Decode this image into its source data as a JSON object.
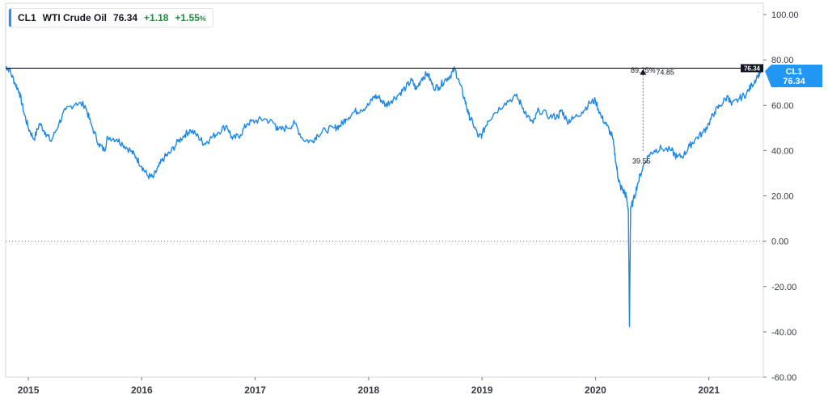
{
  "legend": {
    "symbol": "CL1",
    "name": "WTI Crude Oil",
    "price": "76.34",
    "change": "+1.18",
    "change_pct": "+1.55",
    "pct_sign": "%"
  },
  "price_badge": {
    "symbol": "CL1",
    "price": "76.34"
  },
  "reference_line_tag": "76.34",
  "measure": {
    "pct_label": "89.25%",
    "upper_label": "74.85",
    "lower_label": "39.55"
  },
  "colors": {
    "line": "#1e88e5",
    "badge": "#2196f3",
    "up": "#1e8e3e"
  },
  "chart_data": {
    "type": "line",
    "title": "",
    "xlabel": "",
    "ylabel": "",
    "ylim": [
      -60,
      105
    ],
    "y_ticks": [
      "100.00",
      "80.00",
      "60.00",
      "40.00",
      "20.00",
      "0.00",
      "-20.00",
      "-40.00",
      "-60.00"
    ],
    "x_ticks": [
      "2015",
      "2016",
      "2017",
      "2018",
      "2019",
      "2020",
      "2021"
    ],
    "reference_line": 76.34,
    "zero_line": 0,
    "series": [
      {
        "values": [
          [
            2014.8,
            77
          ],
          [
            2014.83,
            76
          ],
          [
            2014.88,
            70
          ],
          [
            2014.92,
            66
          ],
          [
            2014.96,
            57
          ],
          [
            2015.0,
            50
          ],
          [
            2015.05,
            45
          ],
          [
            2015.1,
            52
          ],
          [
            2015.15,
            48
          ],
          [
            2015.2,
            44
          ],
          [
            2015.27,
            52
          ],
          [
            2015.33,
            58
          ],
          [
            2015.42,
            61
          ],
          [
            2015.5,
            60
          ],
          [
            2015.55,
            52
          ],
          [
            2015.62,
            43
          ],
          [
            2015.67,
            40
          ],
          [
            2015.7,
            46
          ],
          [
            2015.78,
            45
          ],
          [
            2015.83,
            43
          ],
          [
            2015.9,
            40
          ],
          [
            2015.95,
            37
          ],
          [
            2016.0,
            33
          ],
          [
            2016.05,
            29
          ],
          [
            2016.1,
            28
          ],
          [
            2016.15,
            33
          ],
          [
            2016.2,
            37
          ],
          [
            2016.25,
            39
          ],
          [
            2016.32,
            44
          ],
          [
            2016.38,
            47
          ],
          [
            2016.43,
            49
          ],
          [
            2016.5,
            46
          ],
          [
            2016.55,
            43
          ],
          [
            2016.6,
            45
          ],
          [
            2016.67,
            48
          ],
          [
            2016.75,
            51
          ],
          [
            2016.8,
            45
          ],
          [
            2016.87,
            47
          ],
          [
            2016.93,
            52
          ],
          [
            2017.0,
            53
          ],
          [
            2017.08,
            54
          ],
          [
            2017.17,
            52
          ],
          [
            2017.2,
            49
          ],
          [
            2017.28,
            50
          ],
          [
            2017.35,
            52
          ],
          [
            2017.42,
            45
          ],
          [
            2017.5,
            44
          ],
          [
            2017.55,
            47
          ],
          [
            2017.62,
            49
          ],
          [
            2017.7,
            50
          ],
          [
            2017.75,
            51
          ],
          [
            2017.8,
            54
          ],
          [
            2017.87,
            57
          ],
          [
            2017.93,
            58
          ],
          [
            2018.0,
            60
          ],
          [
            2018.05,
            64
          ],
          [
            2018.1,
            63
          ],
          [
            2018.15,
            60
          ],
          [
            2018.2,
            62
          ],
          [
            2018.27,
            65
          ],
          [
            2018.33,
            68
          ],
          [
            2018.38,
            71
          ],
          [
            2018.42,
            67
          ],
          [
            2018.47,
            72
          ],
          [
            2018.52,
            74
          ],
          [
            2018.57,
            68
          ],
          [
            2018.62,
            68
          ],
          [
            2018.67,
            71
          ],
          [
            2018.72,
            73
          ],
          [
            2018.76,
            76
          ],
          [
            2018.8,
            70
          ],
          [
            2018.85,
            62
          ],
          [
            2018.88,
            56
          ],
          [
            2018.92,
            52
          ],
          [
            2018.97,
            46
          ],
          [
            2019.0,
            47
          ],
          [
            2019.05,
            53
          ],
          [
            2019.1,
            56
          ],
          [
            2019.2,
            61
          ],
          [
            2019.3,
            64
          ],
          [
            2019.35,
            60
          ],
          [
            2019.4,
            55
          ],
          [
            2019.45,
            52
          ],
          [
            2019.5,
            58
          ],
          [
            2019.6,
            55
          ],
          [
            2019.67,
            55
          ],
          [
            2019.7,
            58
          ],
          [
            2019.75,
            53
          ],
          [
            2019.8,
            54
          ],
          [
            2019.88,
            57
          ],
          [
            2019.95,
            61
          ],
          [
            2020.0,
            62
          ],
          [
            2020.05,
            55
          ],
          [
            2020.1,
            51
          ],
          [
            2020.15,
            46
          ],
          [
            2020.18,
            35
          ],
          [
            2020.2,
            28
          ],
          [
            2020.22,
            24
          ],
          [
            2020.25,
            22
          ],
          [
            2020.27,
            20
          ],
          [
            2020.29,
            14
          ],
          [
            2020.3,
            -37.63
          ],
          [
            2020.31,
            15
          ],
          [
            2020.33,
            17
          ],
          [
            2020.37,
            25
          ],
          [
            2020.42,
            33
          ],
          [
            2020.47,
            38
          ],
          [
            2020.52,
            40
          ],
          [
            2020.58,
            41
          ],
          [
            2020.67,
            40
          ],
          [
            2020.72,
            37
          ],
          [
            2020.78,
            38
          ],
          [
            2020.83,
            42
          ],
          [
            2020.88,
            45
          ],
          [
            2020.95,
            48
          ],
          [
            2021.0,
            52
          ],
          [
            2021.05,
            57
          ],
          [
            2021.1,
            60
          ],
          [
            2021.17,
            64
          ],
          [
            2021.2,
            60
          ],
          [
            2021.27,
            63
          ],
          [
            2021.33,
            65
          ],
          [
            2021.38,
            69
          ],
          [
            2021.43,
            73
          ],
          [
            2021.47,
            76.34
          ]
        ]
      }
    ]
  }
}
